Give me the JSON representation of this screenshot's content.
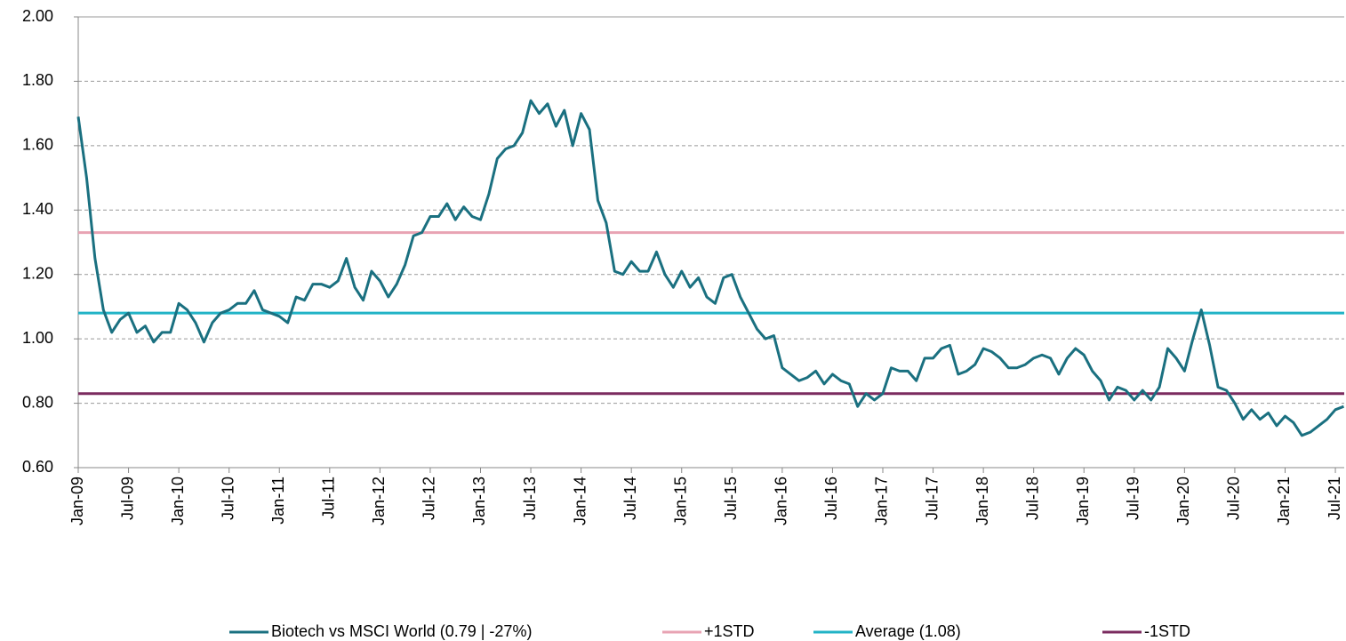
{
  "chart_data": {
    "type": "line",
    "categories": [
      "Jan-09",
      null,
      null,
      null,
      null,
      null,
      "Jul-09",
      null,
      null,
      null,
      null,
      null,
      "Jan-10",
      null,
      null,
      null,
      null,
      null,
      "Jul-10",
      null,
      null,
      null,
      null,
      null,
      "Jan-11",
      null,
      null,
      null,
      null,
      null,
      "Jul-11",
      null,
      null,
      null,
      null,
      null,
      "Jan-12",
      null,
      null,
      null,
      null,
      null,
      "Jul-12",
      null,
      null,
      null,
      null,
      null,
      "Jan-13",
      null,
      null,
      null,
      null,
      null,
      "Jul-13",
      null,
      null,
      null,
      null,
      null,
      "Jan-14",
      null,
      null,
      null,
      null,
      null,
      "Jul-14",
      null,
      null,
      null,
      null,
      null,
      "Jan-15",
      null,
      null,
      null,
      null,
      null,
      "Jul-15",
      null,
      null,
      null,
      null,
      null,
      "Jan-16",
      null,
      null,
      null,
      null,
      null,
      "Jul-16",
      null,
      null,
      null,
      null,
      null,
      "Jan-17",
      null,
      null,
      null,
      null,
      null,
      "Jul-17",
      null,
      null,
      null,
      null,
      null,
      "Jan-18",
      null,
      null,
      null,
      null,
      null,
      "Jul-18",
      null,
      null,
      null,
      null,
      null,
      "Jan-19",
      null,
      null,
      null,
      null,
      null,
      "Jul-19",
      null,
      null,
      null,
      null,
      null,
      "Jan-20",
      null,
      null,
      null,
      null,
      null,
      "Jul-20",
      null,
      null,
      null,
      null,
      null,
      "Jan-21",
      null,
      null,
      null,
      null,
      null,
      "Jul-21",
      null
    ],
    "series": [
      {
        "name": "Biotech vs MSCI World (0.79 | -27%)",
        "color": "#1a7080",
        "values": [
          1.69,
          1.5,
          1.25,
          1.09,
          1.02,
          1.06,
          1.08,
          1.02,
          1.04,
          0.99,
          1.02,
          1.02,
          1.11,
          1.09,
          1.05,
          0.99,
          1.05,
          1.08,
          1.09,
          1.11,
          1.11,
          1.15,
          1.09,
          1.08,
          1.07,
          1.05,
          1.13,
          1.12,
          1.17,
          1.17,
          1.16,
          1.18,
          1.25,
          1.16,
          1.12,
          1.21,
          1.18,
          1.13,
          1.17,
          1.23,
          1.32,
          1.33,
          1.38,
          1.38,
          1.42,
          1.37,
          1.41,
          1.38,
          1.37,
          1.45,
          1.56,
          1.59,
          1.6,
          1.64,
          1.74,
          1.7,
          1.73,
          1.66,
          1.71,
          1.6,
          1.7,
          1.65,
          1.43,
          1.36,
          1.21,
          1.2,
          1.24,
          1.21,
          1.21,
          1.27,
          1.2,
          1.16,
          1.21,
          1.16,
          1.19,
          1.13,
          1.11,
          1.19,
          1.2,
          1.13,
          1.08,
          1.03,
          1.0,
          1.01,
          0.91,
          0.89,
          0.87,
          0.88,
          0.9,
          0.86,
          0.89,
          0.87,
          0.86,
          0.79,
          0.83,
          0.81,
          0.83,
          0.91,
          0.9,
          0.9,
          0.87,
          0.94,
          0.94,
          0.97,
          0.98,
          0.89,
          0.9,
          0.92,
          0.97,
          0.96,
          0.94,
          0.91,
          0.91,
          0.92,
          0.94,
          0.95,
          0.94,
          0.89,
          0.94,
          0.97,
          0.95,
          0.9,
          0.87,
          0.81,
          0.85,
          0.84,
          0.81,
          0.84,
          0.81,
          0.85,
          0.97,
          0.94,
          0.9,
          1.0,
          1.09,
          0.98,
          0.85,
          0.84,
          0.8,
          0.75,
          0.78,
          0.75,
          0.77,
          0.73,
          0.76,
          0.74,
          0.7,
          0.71,
          0.73,
          0.75,
          0.78,
          0.79
        ]
      }
    ],
    "reference_lines": [
      {
        "name": "+1STD",
        "color": "#e8a3b3",
        "value": 1.33
      },
      {
        "name": "Average (1.08)",
        "color": "#22b3c6",
        "value": 1.08
      },
      {
        "name": "-1STD",
        "color": "#7b2b5f",
        "value": 0.83
      }
    ],
    "ylim": [
      0.6,
      2.0
    ],
    "yticks": [
      {
        "value": 0.6,
        "label": "0.60"
      },
      {
        "value": 0.8,
        "label": "0.80"
      },
      {
        "value": 1.0,
        "label": "1.00"
      },
      {
        "value": 1.2,
        "label": "1.20"
      },
      {
        "value": 1.4,
        "label": "1.40"
      },
      {
        "value": 1.6,
        "label": "1.60"
      },
      {
        "value": 1.8,
        "label": "1.80"
      },
      {
        "value": 2.0,
        "label": "2.00"
      }
    ],
    "grid": true
  }
}
